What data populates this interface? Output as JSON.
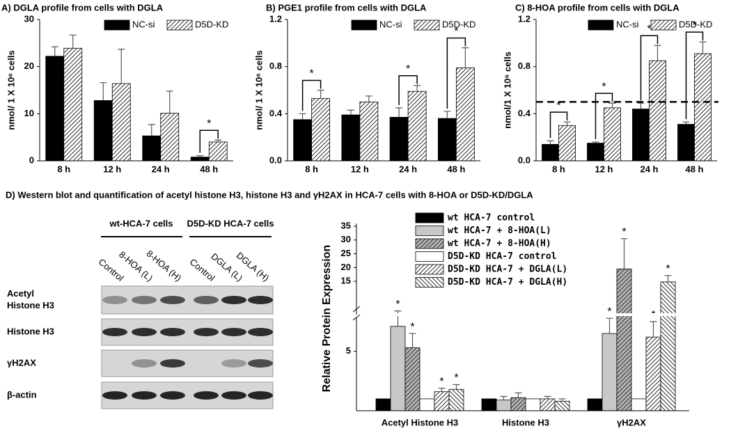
{
  "chart_data": [
    {
      "type": "bar",
      "title": "A) DGLA profile from cells with DGLA",
      "ylabel": "nmol/ 1 X 10⁶ cells",
      "categories": [
        "8 h",
        "12 h",
        "24 h",
        "48 h"
      ],
      "ylim": [
        0,
        30
      ],
      "yticks": [
        0,
        10,
        20,
        30
      ],
      "legend": "top-right",
      "significance_brackets": true,
      "series": [
        {
          "name": "NC-si",
          "color": "#000000",
          "pattern": "solid",
          "values": [
            22.2,
            12.8,
            5.3,
            0.8
          ],
          "errors": [
            2.0,
            3.8,
            2.4,
            0.3
          ]
        },
        {
          "name": "D5D-KD",
          "color": "#ffffff",
          "pattern": "hatch",
          "values": [
            23.9,
            16.4,
            10.1,
            4.0
          ],
          "errors": [
            2.8,
            7.3,
            4.7,
            0.4
          ],
          "markers": [
            null,
            null,
            null,
            "*"
          ]
        }
      ]
    },
    {
      "type": "bar",
      "title": "B) PGE1 profile from cells with DGLA",
      "ylabel": "nmol/ 1 X 10⁶ cells",
      "categories": [
        "8 h",
        "12 h",
        "24 h",
        "48 h"
      ],
      "ylim": [
        0,
        1.2
      ],
      "yticks": [
        {
          "value": 0,
          "label": "0.0"
        },
        0.4,
        0.8,
        1.2
      ],
      "legend": "top-right",
      "significance_brackets": true,
      "series": [
        {
          "name": "NC-si",
          "color": "#000000",
          "pattern": "solid",
          "values": [
            0.35,
            0.39,
            0.37,
            0.36
          ],
          "errors": [
            0.05,
            0.04,
            0.08,
            0.06
          ]
        },
        {
          "name": "D5D-KD",
          "color": "#ffffff",
          "pattern": "hatch",
          "values": [
            0.53,
            0.5,
            0.59,
            0.79
          ],
          "errors": [
            0.07,
            0.05,
            0.05,
            0.17
          ],
          "markers": [
            "*",
            null,
            "*",
            "*"
          ]
        }
      ]
    },
    {
      "type": "bar",
      "title": "C) 8-HOA profile from cells with DGLA",
      "ylabel": "nmol/1 X 10⁶ cells",
      "categories": [
        "8 h",
        "12 h",
        "24 h",
        "48 h"
      ],
      "ylim": [
        0,
        1.2
      ],
      "yticks": [
        {
          "value": 0,
          "label": "0.0"
        },
        0.4,
        0.8,
        1.2
      ],
      "legend": "top-right",
      "significance_brackets": true,
      "reference_line": 0.5,
      "series": [
        {
          "name": "NC-si",
          "color": "#000000",
          "pattern": "solid",
          "values": [
            0.14,
            0.15,
            0.44,
            0.31
          ],
          "errors": [
            0.03,
            0.01,
            0.05,
            0.02
          ]
        },
        {
          "name": "D5D-KD",
          "color": "#ffffff",
          "pattern": "hatch",
          "values": [
            0.3,
            0.45,
            0.85,
            0.91
          ],
          "errors": [
            0.03,
            0.04,
            0.13,
            0.1
          ],
          "markers": [
            "*",
            "*",
            "*",
            "*"
          ]
        }
      ]
    },
    {
      "type": "bar",
      "title": "D) Western blot and quantification of acetyl histone H3, histone H3 and γH2AX in HCA-7 cells with 8-HOA or D5D-KD/DGLA",
      "ylabel": "Relative Protein Expression",
      "categories": [
        "Acetyl Histone H3",
        "Histone H3",
        "γH2AX"
      ],
      "ylim": [
        0,
        35
      ],
      "ybreak": [
        7.5,
        12.5
      ],
      "yticks": [
        5,
        15,
        20,
        25,
        30,
        35
      ],
      "legend": "top-left",
      "significance_brackets": false,
      "series": [
        {
          "name": "wt HCA-7 control",
          "color": "#000000",
          "pattern": "solid",
          "values": [
            1,
            1,
            1
          ]
        },
        {
          "name": "wt HCA-7 + 8-HOA(L)",
          "color": "#c8c8c8",
          "pattern": "solid",
          "values": [
            7.1,
            0.9,
            6.5
          ],
          "errors": [
            2.0,
            0.3,
            1.5
          ],
          "markers": [
            "*",
            null,
            "*"
          ]
        },
        {
          "name": "wt HCA-7 + 8-HOA(H)",
          "color": "#b4b4b4",
          "pattern": "hatch",
          "values": [
            5.3,
            1.1,
            19.5
          ],
          "errors": [
            1.2,
            0.4,
            11
          ],
          "markers": [
            "*",
            null,
            "*"
          ]
        },
        {
          "name": "D5D-KD HCA-7 control",
          "color": "#ffffff",
          "pattern": "solid",
          "values": [
            1,
            1,
            1
          ]
        },
        {
          "name": "D5D-KD HCA-7 + DGLA(L)",
          "color": "#ffffff",
          "pattern": "hatch",
          "values": [
            1.6,
            1.0,
            6.2
          ],
          "errors": [
            0.3,
            0.2,
            1.3
          ],
          "markers": [
            "*",
            null,
            "*"
          ]
        },
        {
          "name": "D5D-KD HCA-7 + DGLA(H)",
          "color": "#ffffff",
          "pattern": "backhatch",
          "values": [
            1.8,
            0.8,
            14.8
          ],
          "errors": [
            0.4,
            0.2,
            2.3
          ],
          "markers": [
            "*",
            null,
            "*"
          ]
        }
      ]
    }
  ],
  "western_blot": {
    "groups": [
      "wt-HCA-7 cells",
      "D5D-KD HCA-7 cells"
    ],
    "lanes": [
      "Control",
      "8-HOA (L)",
      "8-HOA (H)",
      "Control",
      "DGLA (L)",
      "DGLA (H)"
    ],
    "rows": [
      [
        "Acetyl",
        "Histone H3"
      ],
      [
        "Histone H3"
      ],
      [
        "γH2AX"
      ],
      [
        "β-actin"
      ]
    ]
  }
}
